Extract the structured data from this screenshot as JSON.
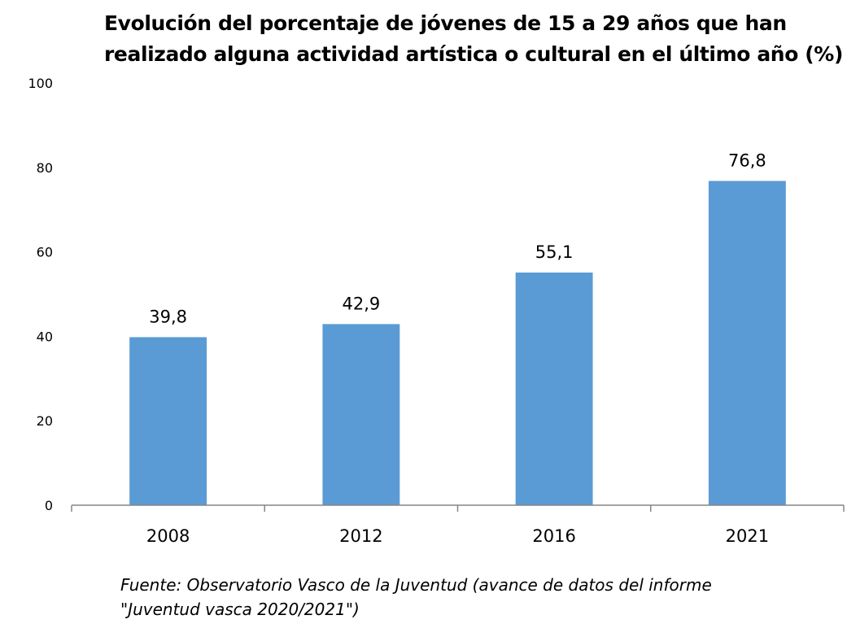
{
  "chart_data": {
    "type": "bar",
    "title_lines": [
      "Evolución del porcentaje de jóvenes de 15 a 29 años que han",
      "realizado alguna actividad artística o cultural en el último año (%)"
    ],
    "categories": [
      "2008",
      "2012",
      "2016",
      "2021"
    ],
    "values": [
      39.8,
      42.9,
      55.1,
      76.8
    ],
    "data_labels": [
      "39,8",
      "42,9",
      "55,1",
      "76,8"
    ],
    "y_ticks": [
      0,
      20,
      40,
      60,
      80,
      100
    ],
    "ylim": [
      0,
      100
    ],
    "grid": false,
    "legend": "none",
    "bar_color": "#5b9bd5",
    "axis_color": "#868686"
  },
  "source_lines": [
    "Fuente: Observatorio Vasco de la Juventud (avance de datos del informe",
    "\"Juventud vasca 2020/2021\")"
  ]
}
